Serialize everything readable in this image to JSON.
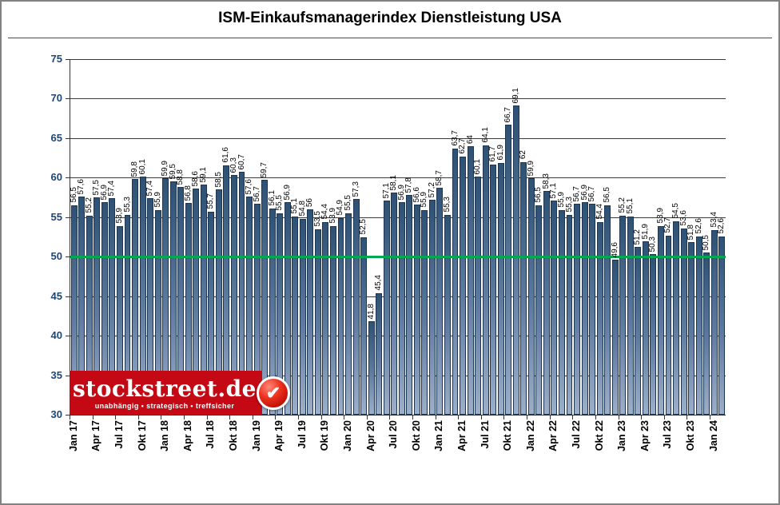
{
  "title": "ISM-Einkaufsmanagerindex Dienstleistung USA",
  "chart_data": {
    "type": "bar",
    "title": "ISM-Einkaufsmanagerindex Dienstleistung USA",
    "ylim": [
      30,
      75
    ],
    "y_ticks": [
      30,
      35,
      40,
      45,
      50,
      55,
      60,
      65,
      70,
      75
    ],
    "grid": true,
    "legend": "none",
    "reference_line": {
      "value": 50,
      "color": "#00A94F"
    },
    "x_tick_every": 3,
    "x_tick_labels": [
      "Jan 17",
      "Apr 17",
      "Jul 17",
      "Okt 17",
      "Jan 18",
      "Apr 18",
      "Jul 18",
      "Okt 18",
      "Jan 19",
      "Apr 19",
      "Jul 19",
      "Okt 19",
      "Jan 20",
      "Apr 20",
      "Jul 20",
      "Okt 20",
      "Jan 21",
      "Apr 21",
      "Jul 21",
      "Okt 21",
      "Jan 22",
      "Apr 22",
      "Jul 22",
      "Okt 22",
      "Jan 23",
      "Apr 23",
      "Jul 23",
      "Okt 23",
      "Jan 24"
    ],
    "values": [
      56.5,
      57.6,
      55.2,
      57.5,
      56.9,
      57.4,
      53.9,
      55.3,
      59.8,
      60.1,
      57.4,
      55.9,
      59.9,
      59.5,
      58.8,
      56.8,
      58.6,
      59.1,
      55.7,
      58.5,
      61.6,
      60.3,
      60.7,
      57.6,
      56.7,
      59.7,
      56.1,
      55.5,
      56.9,
      55.1,
      54.8,
      56,
      53.5,
      54.4,
      53.9,
      54.9,
      55.5,
      57.3,
      52.5,
      41.8,
      45.4,
      57.1,
      58.1,
      56.9,
      57.8,
      56.6,
      55.9,
      57.2,
      58.7,
      55.3,
      63.7,
      62.7,
      64,
      60.1,
      64.1,
      61.7,
      61.9,
      66.7,
      69.1,
      62,
      59.9,
      56.5,
      58.3,
      57.1,
      55.9,
      55.3,
      56.7,
      56.9,
      56.7,
      54.4,
      56.5,
      49.6,
      55.2,
      55.1,
      51.2,
      51.9,
      50.3,
      53.9,
      52.7,
      54.5,
      53.6,
      51.8,
      52.6,
      50.5,
      53.4,
      52.6
    ],
    "bar_labels": [
      "56,5",
      "57,6",
      "55,2",
      "57,5",
      "56,9",
      "57,4",
      "53,9",
      "55,3",
      "59,8",
      "60,1",
      "57,4",
      "55,9",
      "59,9",
      "59,5",
      "58,8",
      "56,8",
      "58,6",
      "59,1",
      "55,7",
      "58,5",
      "61,6",
      "60,3",
      "60,7",
      "57,6",
      "56,7",
      "59,7",
      "56,1",
      "55,5",
      "56,9",
      "55,1",
      "54,8",
      "56",
      "53,5",
      "54,4",
      "53,9",
      "54,9",
      "55,5",
      "57,3",
      "52,5",
      "41,8",
      "45,4",
      "57,1",
      "58,1",
      "56,9",
      "57,8",
      "56,6",
      "55,9",
      "57,2",
      "58,7",
      "55,3",
      "63,7",
      "62,7",
      "64",
      "60,1",
      "64,1",
      "61,7",
      "61,9",
      "66,7",
      "69,1",
      "62",
      "59,9",
      "56,5",
      "58,3",
      "57,1",
      "55,9",
      "55,3",
      "56,7",
      "56,9",
      "56,7",
      "54,4",
      "56,5",
      "49,6",
      "55,2",
      "55,1",
      "51,2",
      "51,9",
      "50,3",
      "53,9",
      "52,7",
      "54,5",
      "53,6",
      "51,8",
      "52,6",
      "50,5",
      "53,4",
      "52,6"
    ],
    "colors": {
      "bar_top": "#2E5174",
      "bar_mid": "#5F7BA0",
      "bar_bottom": "#9DAFC9",
      "bar_border": "#1C3553",
      "axis_text": "#1F4575",
      "grid_line": "#3A3A3A",
      "label_text": "#000000"
    }
  },
  "logo": {
    "name": "stockstreet.de",
    "tagline": "unabhängig • strategisch • treffsicher",
    "bg_color": "#C50914",
    "badge_icon": "checkmark"
  }
}
